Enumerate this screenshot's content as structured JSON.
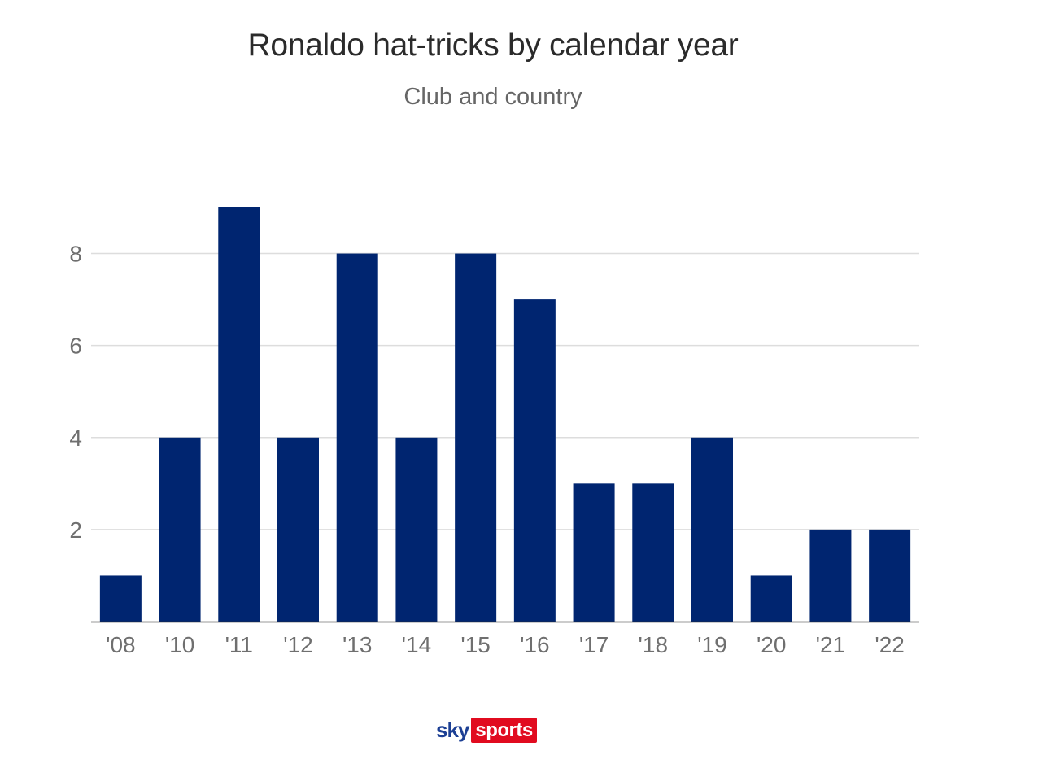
{
  "chart_data": {
    "type": "bar",
    "title": "Ronaldo hat-tricks by calendar year",
    "subtitle": "Club and country",
    "categories": [
      "'08",
      "'10",
      "'11",
      "'12",
      "'13",
      "'14",
      "'15",
      "'16",
      "'17",
      "'18",
      "'19",
      "'20",
      "'21",
      "'22"
    ],
    "values": [
      1,
      4,
      9,
      4,
      8,
      4,
      8,
      7,
      3,
      3,
      4,
      1,
      2,
      2
    ],
    "xlabel": "",
    "ylabel": "",
    "ylim": [
      0,
      9
    ],
    "yticks": [
      2,
      4,
      6,
      8
    ],
    "grid": true,
    "legend": "none",
    "bar_color": "#002570"
  },
  "colors": {
    "gridline": "#dddddd",
    "axis": "#333333",
    "tick_text": "#6f6f6f"
  },
  "branding": {
    "logo_sky": "sky",
    "logo_sports": "sports",
    "sky_color": "#1c3f94",
    "sports_bg": "#e10b1f"
  }
}
